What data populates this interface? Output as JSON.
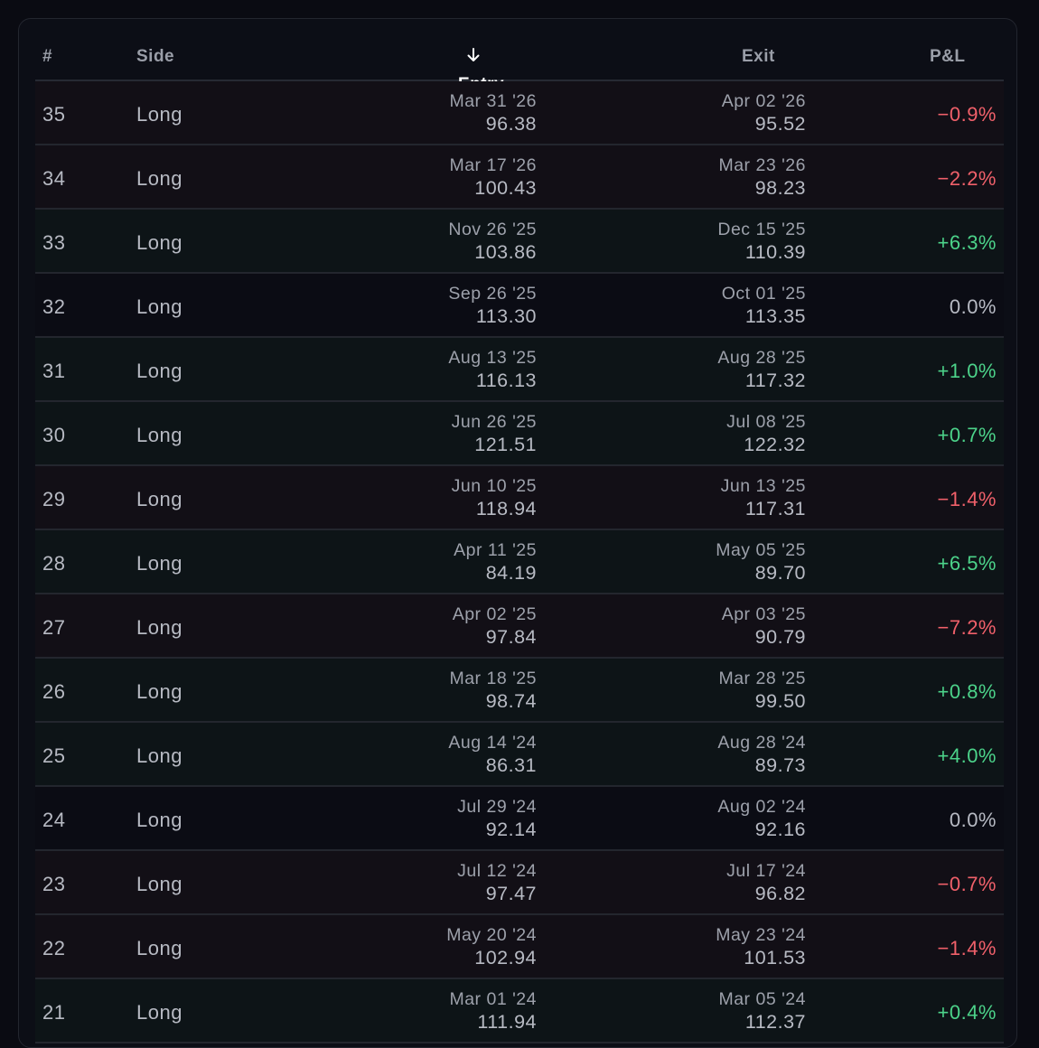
{
  "table": {
    "columns": {
      "num": "#",
      "side": "Side",
      "entry": "Entry",
      "exit": "Exit",
      "pnl": "P&L"
    },
    "sort": {
      "column": "entry",
      "direction": "descending"
    },
    "colors": {
      "gain": "#4cd38a",
      "loss": "#f0606a",
      "neutral": "#b7bac3"
    },
    "rows": [
      {
        "num": "35",
        "side": "Long",
        "entry_date": "Mar 31 '26",
        "entry_price": "96.38",
        "exit_date": "Apr 02 '26",
        "exit_price": "95.52",
        "pnl": "−0.9%",
        "status": "loss"
      },
      {
        "num": "34",
        "side": "Long",
        "entry_date": "Mar 17 '26",
        "entry_price": "100.43",
        "exit_date": "Mar 23 '26",
        "exit_price": "98.23",
        "pnl": "−2.2%",
        "status": "loss"
      },
      {
        "num": "33",
        "side": "Long",
        "entry_date": "Nov 26 '25",
        "entry_price": "103.86",
        "exit_date": "Dec 15 '25",
        "exit_price": "110.39",
        "pnl": "+6.3%",
        "status": "gain"
      },
      {
        "num": "32",
        "side": "Long",
        "entry_date": "Sep 26 '25",
        "entry_price": "113.30",
        "exit_date": "Oct 01 '25",
        "exit_price": "113.35",
        "pnl": "0.0%",
        "status": "flat"
      },
      {
        "num": "31",
        "side": "Long",
        "entry_date": "Aug 13 '25",
        "entry_price": "116.13",
        "exit_date": "Aug 28 '25",
        "exit_price": "117.32",
        "pnl": "+1.0%",
        "status": "gain"
      },
      {
        "num": "30",
        "side": "Long",
        "entry_date": "Jun 26 '25",
        "entry_price": "121.51",
        "exit_date": "Jul 08 '25",
        "exit_price": "122.32",
        "pnl": "+0.7%",
        "status": "gain"
      },
      {
        "num": "29",
        "side": "Long",
        "entry_date": "Jun 10 '25",
        "entry_price": "118.94",
        "exit_date": "Jun 13 '25",
        "exit_price": "117.31",
        "pnl": "−1.4%",
        "status": "loss"
      },
      {
        "num": "28",
        "side": "Long",
        "entry_date": "Apr 11 '25",
        "entry_price": "84.19",
        "exit_date": "May 05 '25",
        "exit_price": "89.70",
        "pnl": "+6.5%",
        "status": "gain"
      },
      {
        "num": "27",
        "side": "Long",
        "entry_date": "Apr 02 '25",
        "entry_price": "97.84",
        "exit_date": "Apr 03 '25",
        "exit_price": "90.79",
        "pnl": "−7.2%",
        "status": "loss"
      },
      {
        "num": "26",
        "side": "Long",
        "entry_date": "Mar 18 '25",
        "entry_price": "98.74",
        "exit_date": "Mar 28 '25",
        "exit_price": "99.50",
        "pnl": "+0.8%",
        "status": "gain"
      },
      {
        "num": "25",
        "side": "Long",
        "entry_date": "Aug 14 '24",
        "entry_price": "86.31",
        "exit_date": "Aug 28 '24",
        "exit_price": "89.73",
        "pnl": "+4.0%",
        "status": "gain"
      },
      {
        "num": "24",
        "side": "Long",
        "entry_date": "Jul 29 '24",
        "entry_price": "92.14",
        "exit_date": "Aug 02 '24",
        "exit_price": "92.16",
        "pnl": "0.0%",
        "status": "flat"
      },
      {
        "num": "23",
        "side": "Long",
        "entry_date": "Jul 12 '24",
        "entry_price": "97.47",
        "exit_date": "Jul 17 '24",
        "exit_price": "96.82",
        "pnl": "−0.7%",
        "status": "loss"
      },
      {
        "num": "22",
        "side": "Long",
        "entry_date": "May 20 '24",
        "entry_price": "102.94",
        "exit_date": "May 23 '24",
        "exit_price": "101.53",
        "pnl": "−1.4%",
        "status": "loss"
      },
      {
        "num": "21",
        "side": "Long",
        "entry_date": "Mar 01 '24",
        "entry_price": "111.94",
        "exit_date": "Mar 05 '24",
        "exit_price": "112.37",
        "pnl": "+0.4%",
        "status": "gain"
      }
    ]
  }
}
